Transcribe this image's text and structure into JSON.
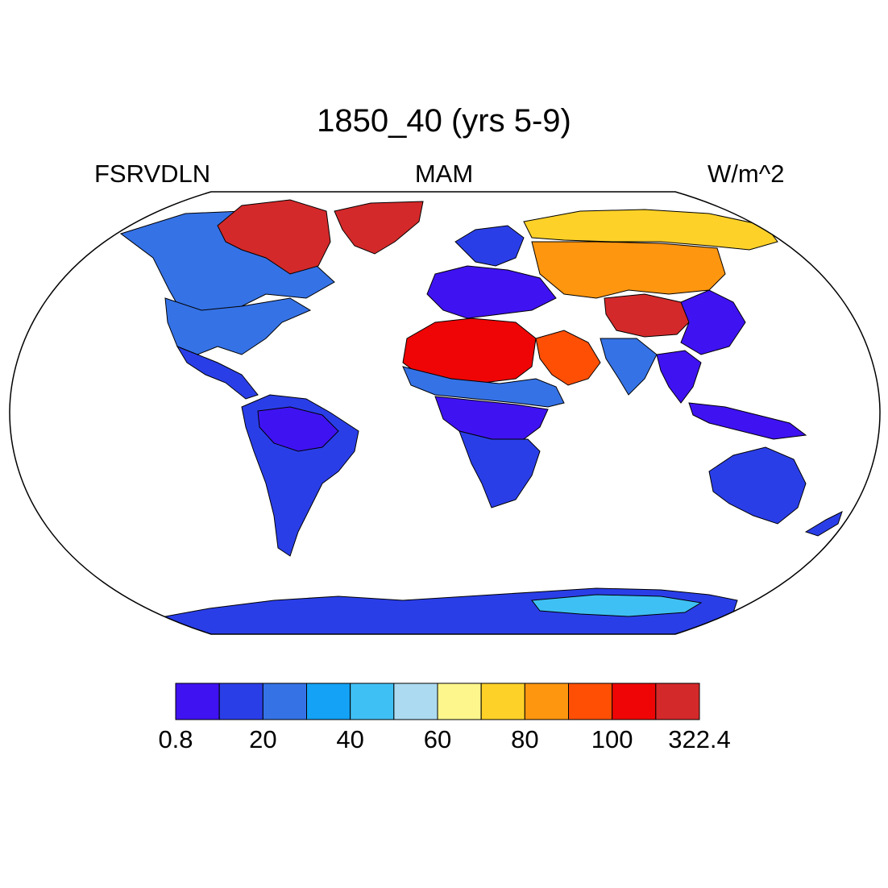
{
  "title": "1850_40 (yrs 5-9)",
  "left_label": "FSRVDLN",
  "center_label": "MAM",
  "right_label": "W/m^2",
  "colorbar": {
    "colors": [
      "#3f12f2",
      "#2a3ee8",
      "#3572e6",
      "#13a2f5",
      "#3fc0f4",
      "#acdaf1",
      "#fdf68d",
      "#fdd128",
      "#fe9610",
      "#fe4f05",
      "#ef0505",
      "#d4292a"
    ],
    "tick_labels": [
      "0.8",
      "20",
      "40",
      "60",
      "80",
      "100",
      "322.4"
    ]
  },
  "regions": [
    {
      "name": "greenland",
      "color": "#d4292a"
    },
    {
      "name": "sahara",
      "color": "#ef0505"
    },
    {
      "name": "arabia",
      "color": "#fe4f05"
    },
    {
      "name": "tibet",
      "color": "#d4292a"
    },
    {
      "name": "central-asia",
      "color": "#fe9610"
    },
    {
      "name": "siberia",
      "color": "#fdd128"
    },
    {
      "name": "canada-arctic",
      "color": "#d4292a"
    },
    {
      "name": "canada",
      "color": "#3572e6"
    },
    {
      "name": "usa",
      "color": "#3572e6"
    },
    {
      "name": "mexico",
      "color": "#2a3ee8"
    },
    {
      "name": "south-america",
      "color": "#2a3ee8"
    },
    {
      "name": "amazon",
      "color": "#3f12f2"
    },
    {
      "name": "africa-south",
      "color": "#2a3ee8"
    },
    {
      "name": "congo",
      "color": "#3f12f2"
    },
    {
      "name": "sahel",
      "color": "#3572e6"
    },
    {
      "name": "europe",
      "color": "#3f12f2"
    },
    {
      "name": "scandinavia",
      "color": "#2a3ee8"
    },
    {
      "name": "india",
      "color": "#3572e6"
    },
    {
      "name": "china",
      "color": "#3f12f2"
    },
    {
      "name": "southeast-asia",
      "color": "#3f12f2"
    },
    {
      "name": "indonesia",
      "color": "#3f12f2"
    },
    {
      "name": "australia",
      "color": "#2a3ee8"
    },
    {
      "name": "antarctica",
      "color": "#2a3ee8"
    },
    {
      "name": "antarctica-interior",
      "color": "#3fc0f4"
    }
  ]
}
